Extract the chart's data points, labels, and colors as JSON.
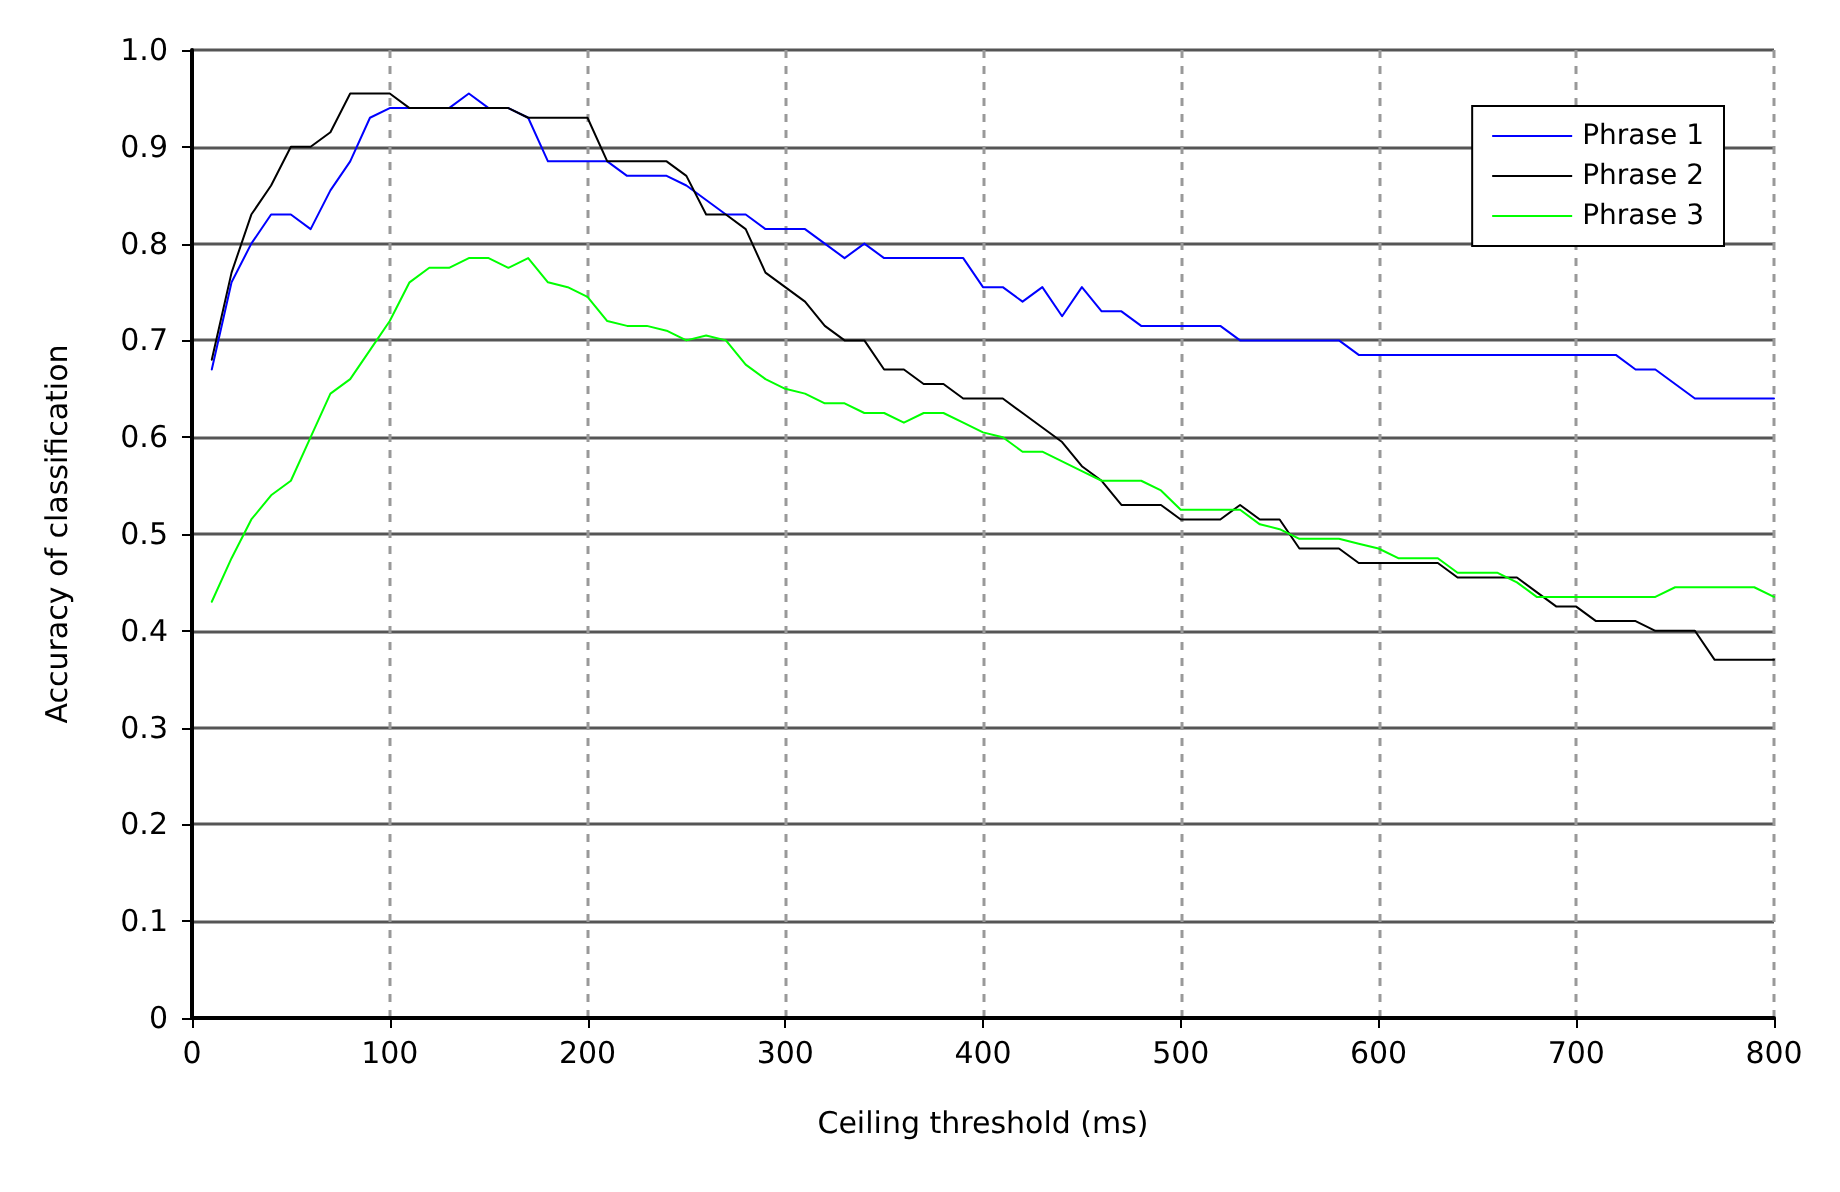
{
  "chart_data": {
    "type": "line",
    "xlabel": "Ceiling threshold (ms)",
    "ylabel": "Accuracy of classification",
    "xlim": [
      0,
      800
    ],
    "xticks": [
      0,
      100,
      200,
      300,
      400,
      500,
      600,
      700,
      800
    ],
    "ylim": [
      0,
      1
    ],
    "yticks": [
      0,
      0.1,
      0.2,
      0.3,
      0.4,
      0.5,
      0.6,
      0.7,
      0.8,
      0.9,
      {
        "value": 1,
        "label": "1.0"
      }
    ],
    "grid": true,
    "legend": "top right",
    "marker": "none",
    "line_style": "solid",
    "series": [
      {
        "name": "Phrase 1",
        "color": "#0000ff",
        "x": [
          10,
          20,
          30,
          40,
          50,
          60,
          70,
          80,
          90,
          100,
          130,
          140,
          150,
          160,
          170,
          180,
          210,
          220,
          240,
          250,
          260,
          270,
          280,
          290,
          310,
          320,
          330,
          340,
          350,
          390,
          400,
          410,
          420,
          430,
          440,
          450,
          460,
          470,
          480,
          520,
          530,
          580,
          590,
          720,
          730,
          740,
          760,
          800
        ],
        "values": [
          0.67,
          0.76,
          0.8,
          0.83,
          0.83,
          0.815,
          0.855,
          0.885,
          0.93,
          0.94,
          0.94,
          0.955,
          0.94,
          0.94,
          0.93,
          0.885,
          0.885,
          0.87,
          0.87,
          0.86,
          0.845,
          0.83,
          0.83,
          0.815,
          0.815,
          0.8,
          0.785,
          0.8,
          0.785,
          0.785,
          0.755,
          0.755,
          0.74,
          0.755,
          0.725,
          0.755,
          0.73,
          0.73,
          0.715,
          0.715,
          0.7,
          0.7,
          0.685,
          0.685,
          0.67,
          0.67,
          0.64,
          0.64
        ]
      },
      {
        "name": "Phrase 2",
        "color": "#000000",
        "x": [
          10,
          20,
          30,
          40,
          50,
          60,
          70,
          80,
          100,
          110,
          160,
          170,
          200,
          210,
          240,
          250,
          260,
          270,
          280,
          290,
          300,
          310,
          320,
          330,
          340,
          350,
          360,
          370,
          380,
          390,
          410,
          420,
          430,
          440,
          450,
          460,
          470,
          490,
          500,
          520,
          530,
          540,
          550,
          560,
          580,
          590,
          630,
          640,
          670,
          680,
          690,
          700,
          710,
          730,
          740,
          760,
          770,
          800
        ],
        "values": [
          0.68,
          0.77,
          0.83,
          0.86,
          0.9,
          0.9,
          0.915,
          0.955,
          0.955,
          0.94,
          0.94,
          0.93,
          0.93,
          0.885,
          0.885,
          0.87,
          0.83,
          0.83,
          0.815,
          0.77,
          0.755,
          0.74,
          0.715,
          0.7,
          0.7,
          0.67,
          0.67,
          0.655,
          0.655,
          0.64,
          0.64,
          0.625,
          0.61,
          0.595,
          0.57,
          0.555,
          0.53,
          0.53,
          0.515,
          0.515,
          0.53,
          0.515,
          0.515,
          0.485,
          0.485,
          0.47,
          0.47,
          0.455,
          0.455,
          0.44,
          0.425,
          0.425,
          0.41,
          0.41,
          0.4,
          0.4,
          0.37,
          0.37
        ]
      },
      {
        "name": "Phrase 3",
        "color": "#00ff00",
        "x": [
          10,
          20,
          30,
          40,
          50,
          60,
          70,
          80,
          90,
          100,
          110,
          120,
          130,
          140,
          150,
          160,
          170,
          180,
          190,
          200,
          210,
          220,
          230,
          240,
          250,
          260,
          270,
          280,
          290,
          300,
          310,
          320,
          330,
          340,
          350,
          360,
          370,
          380,
          390,
          400,
          410,
          420,
          430,
          440,
          450,
          460,
          480,
          490,
          500,
          530,
          540,
          550,
          560,
          580,
          590,
          600,
          610,
          630,
          640,
          660,
          670,
          680,
          740,
          750,
          790,
          800
        ],
        "values": [
          0.43,
          0.475,
          0.515,
          0.54,
          0.555,
          0.6,
          0.645,
          0.66,
          0.69,
          0.72,
          0.76,
          0.775,
          0.775,
          0.785,
          0.785,
          0.775,
          0.785,
          0.76,
          0.755,
          0.745,
          0.72,
          0.715,
          0.715,
          0.71,
          0.7,
          0.705,
          0.7,
          0.675,
          0.66,
          0.65,
          0.645,
          0.635,
          0.635,
          0.625,
          0.625,
          0.615,
          0.625,
          0.625,
          0.615,
          0.605,
          0.6,
          0.585,
          0.585,
          0.575,
          0.565,
          0.555,
          0.555,
          0.545,
          0.525,
          0.525,
          0.51,
          0.505,
          0.495,
          0.495,
          0.49,
          0.485,
          0.475,
          0.475,
          0.46,
          0.46,
          0.45,
          0.435,
          0.435,
          0.445,
          0.445,
          0.435
        ]
      }
    ]
  }
}
